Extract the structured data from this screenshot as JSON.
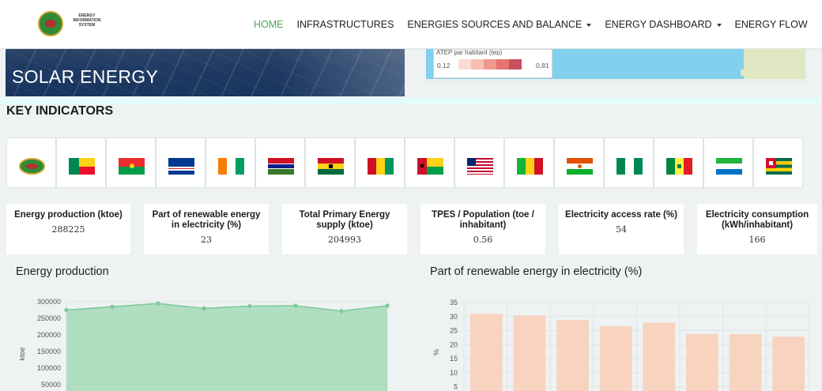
{
  "nav": {
    "logo_text": "ENERGY INFORMATION SYSTEM",
    "items": [
      {
        "label": "HOME",
        "active": true,
        "dropdown": false
      },
      {
        "label": "INFRASTRUCTURES",
        "active": false,
        "dropdown": false
      },
      {
        "label": "ENERGIES SOURCES AND BALANCE",
        "active": false,
        "dropdown": true
      },
      {
        "label": "ENERGY DASHBOARD",
        "active": false,
        "dropdown": true
      },
      {
        "label": "ENERGY FLOW",
        "active": false,
        "dropdown": false
      }
    ]
  },
  "hero": {
    "title": "SOLAR ENERGY"
  },
  "map": {
    "legend_title": "ATEP par habitant (tep)",
    "legend_min": "0,12",
    "legend_max": "0,81",
    "legend_colors": [
      "#fbdcd5",
      "#f7bfb4",
      "#f0988b",
      "#e57370",
      "#c94f5c"
    ]
  },
  "key_indicators": {
    "title": "KEY INDICATORS"
  },
  "flags": [
    {
      "name": "ecowas"
    },
    {
      "name": "benin"
    },
    {
      "name": "burkina-faso"
    },
    {
      "name": "cape-verde"
    },
    {
      "name": "cote-divoire"
    },
    {
      "name": "gambia"
    },
    {
      "name": "ghana"
    },
    {
      "name": "guinea"
    },
    {
      "name": "guinea-bissau"
    },
    {
      "name": "liberia"
    },
    {
      "name": "mali"
    },
    {
      "name": "niger"
    },
    {
      "name": "nigeria"
    },
    {
      "name": "senegal"
    },
    {
      "name": "sierra-leone"
    },
    {
      "name": "togo"
    }
  ],
  "indicators": [
    {
      "label": "Energy production (ktoe)",
      "value": "288225"
    },
    {
      "label": "Part of renewable energy in electricity (%)",
      "value": "23"
    },
    {
      "label": "Total Primary Energy supply (ktoe)",
      "value": "204993"
    },
    {
      "label": "TPES / Population (toe / inhabitant)",
      "value": "0.56"
    },
    {
      "label": "Electricity access rate (%)",
      "value": "54"
    },
    {
      "label": "Electricity consumption (kWh/inhabitant)",
      "value": "166"
    }
  ],
  "charts": {
    "energy_production_title": "Energy production",
    "renewable_title": "Part of renewable energy in electricity (%)"
  },
  "chart_data": [
    {
      "type": "area",
      "title": "Energy production",
      "ylabel": "ktoe",
      "ylim": [
        0,
        300000
      ],
      "yticks": [
        50000,
        100000,
        150000,
        200000,
        250000,
        300000
      ],
      "values": [
        275000,
        285000,
        295000,
        280000,
        287000,
        288000,
        272000,
        288225
      ],
      "color": "#8fd3a6",
      "grid": true
    },
    {
      "type": "bar",
      "title": "Part of renewable energy in electricity (%)",
      "ylabel": "%",
      "ylim": [
        0,
        35
      ],
      "yticks": [
        5,
        10,
        15,
        20,
        25,
        30,
        35
      ],
      "values": [
        31,
        30.4,
        28.8,
        26.6,
        27.8,
        23.8,
        23.7,
        22.8
      ],
      "color": "#f7d3c0",
      "grid": true
    }
  ]
}
